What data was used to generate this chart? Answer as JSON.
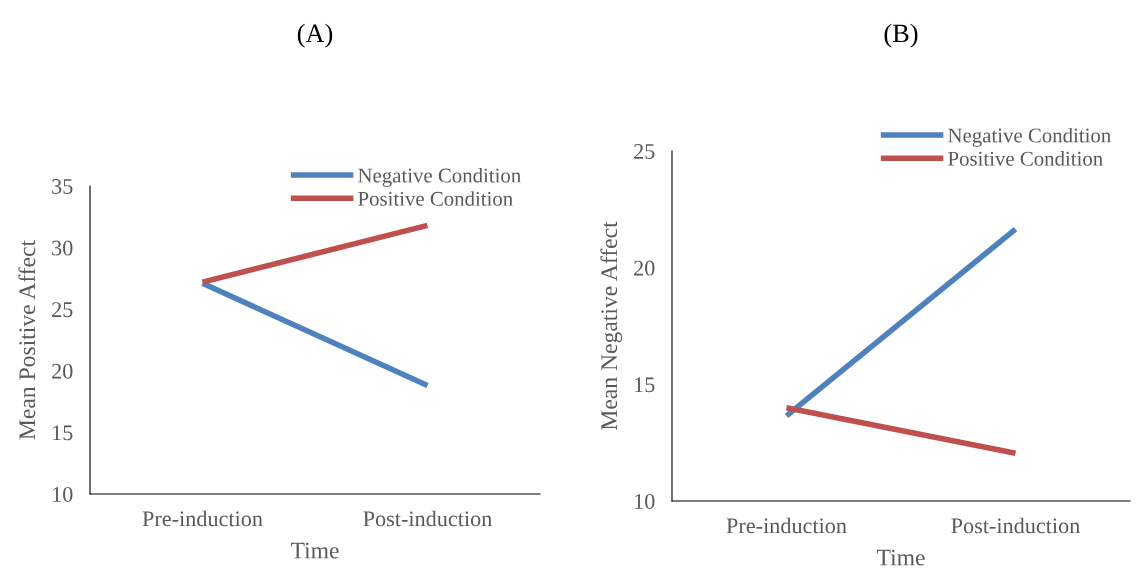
{
  "chart_data": [
    {
      "type": "line",
      "title": "(A)",
      "xlabel": "Time",
      "ylabel": "Mean Positive Affect",
      "categories": [
        "Pre-induction",
        "Post-induction"
      ],
      "series": [
        {
          "name": "Negative Condition",
          "color": "#4f81bd",
          "values": [
            27.1,
            18.8
          ]
        },
        {
          "name": "Positive Condition",
          "color": "#c0504d",
          "values": [
            27.2,
            31.8
          ]
        }
      ],
      "ylim": [
        10,
        35
      ],
      "yticks": [
        10,
        15,
        20,
        25,
        30,
        35
      ],
      "grid": false,
      "legend": "top right",
      "marker": "none",
      "line_style": "solid"
    },
    {
      "type": "line",
      "title": "(B)",
      "xlabel": "Time",
      "ylabel": "Mean Negative Affect",
      "categories": [
        "Pre-induction",
        "Post-induction"
      ],
      "series": [
        {
          "name": "Negative Condition",
          "color": "#4f81bd",
          "values": [
            13.65,
            21.65
          ]
        },
        {
          "name": "Positive Condition",
          "color": "#c0504d",
          "values": [
            14.0,
            12.05
          ]
        }
      ],
      "ylim": [
        10,
        25
      ],
      "yticks": [
        10,
        15,
        20,
        25
      ],
      "grid": false,
      "legend": "top right",
      "marker": "none",
      "line_style": "solid"
    }
  ]
}
